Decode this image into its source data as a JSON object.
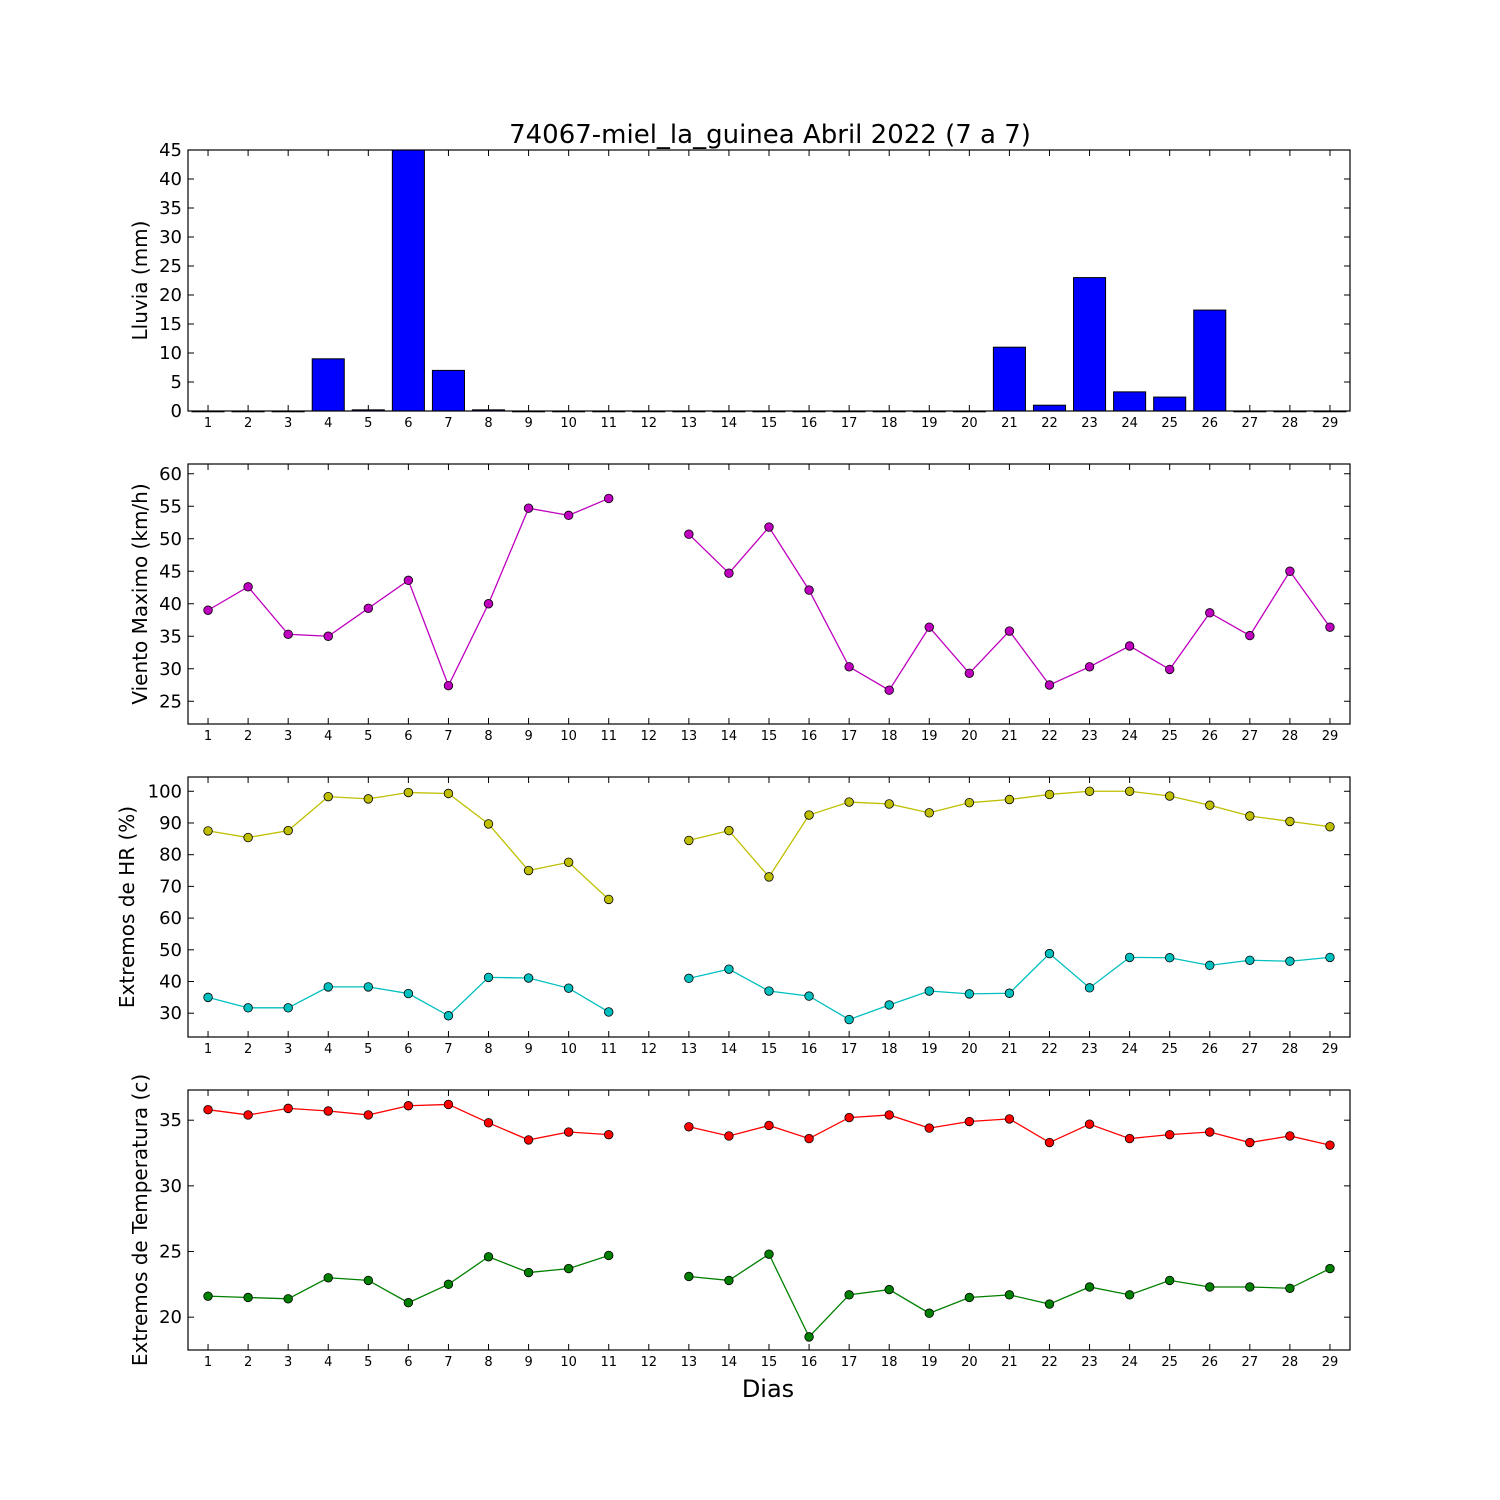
{
  "chart_data": [
    {
      "type": "bar",
      "title": "74067-miel_la_guinea Abril 2022  (7 a 7)",
      "ylabel": "Lluvia (mm)",
      "xlabel": "",
      "categories": [
        "1",
        "2",
        "3",
        "4",
        "5",
        "6",
        "7",
        "8",
        "9",
        "10",
        "11",
        "12",
        "13",
        "14",
        "15",
        "16",
        "17",
        "18",
        "19",
        "20",
        "21",
        "22",
        "23",
        "24",
        "25",
        "26",
        "27",
        "28",
        "29"
      ],
      "values": [
        0,
        0,
        0,
        9,
        0.2,
        45,
        7,
        0.2,
        0,
        0,
        0,
        0,
        0,
        0,
        0,
        0,
        0,
        0,
        0,
        0,
        11,
        1,
        23,
        3.3,
        2.4,
        17.4,
        0,
        0,
        0
      ],
      "ylim": [
        0,
        45
      ],
      "yticks": [
        0,
        5,
        10,
        15,
        20,
        25,
        30,
        35,
        40,
        45
      ],
      "color": "#0000ff"
    },
    {
      "type": "line",
      "ylabel": "Viento Maximo (km/h)",
      "x": [
        1,
        2,
        3,
        4,
        5,
        6,
        7,
        8,
        9,
        10,
        11,
        12,
        13,
        14,
        15,
        16,
        17,
        18,
        19,
        20,
        21,
        22,
        23,
        24,
        25,
        26,
        27,
        28,
        29
      ],
      "series": [
        {
          "values": [
            39,
            42.6,
            35.3,
            35,
            39.3,
            43.6,
            27.4,
            40,
            54.7,
            53.6,
            56.2,
            null,
            50.7,
            44.7,
            51.8,
            42.1,
            30.3,
            26.7,
            36.4,
            29.3,
            35.8,
            27.5,
            30.3,
            33.5,
            29.9,
            38.6,
            35.1,
            45,
            36.4
          ],
          "color": "#bf00bf"
        }
      ],
      "ylim": [
        21.5,
        61.5
      ],
      "yticks": [
        25,
        30,
        35,
        40,
        45,
        50,
        55,
        60
      ]
    },
    {
      "type": "line",
      "ylabel": "Extremos de HR (%)",
      "x": [
        1,
        2,
        3,
        4,
        5,
        6,
        7,
        8,
        9,
        10,
        11,
        12,
        13,
        14,
        15,
        16,
        17,
        18,
        19,
        20,
        21,
        22,
        23,
        24,
        25,
        26,
        27,
        28,
        29
      ],
      "series": [
        {
          "values": [
            87.5,
            85.4,
            87.6,
            98.3,
            97.6,
            99.6,
            99.3,
            89.7,
            75,
            77.6,
            65.9,
            null,
            84.5,
            87.6,
            73,
            92.5,
            96.6,
            96,
            93.2,
            96.4,
            97.4,
            99,
            100,
            100,
            98.5,
            95.6,
            92.2,
            90.5,
            88.8
          ],
          "color": "#bfbf00"
        },
        {
          "values": [
            35,
            31.7,
            31.7,
            38.3,
            38.3,
            36.2,
            29.2,
            41.3,
            41.1,
            37.9,
            30.4,
            null,
            41,
            43.9,
            37,
            35.4,
            28,
            32.6,
            37,
            36.1,
            36.3,
            48.8,
            38,
            47.6,
            47.5,
            45.1,
            46.7,
            46.4,
            47.6
          ],
          "color": "#00bfbf"
        }
      ],
      "ylim": [
        22.5,
        104.5
      ],
      "yticks": [
        30,
        40,
        50,
        60,
        70,
        80,
        90,
        100
      ]
    },
    {
      "type": "line",
      "ylabel": "Extremos de Temperatura (c)",
      "xlabel": "Dias",
      "x": [
        1,
        2,
        3,
        4,
        5,
        6,
        7,
        8,
        9,
        10,
        11,
        12,
        13,
        14,
        15,
        16,
        17,
        18,
        19,
        20,
        21,
        22,
        23,
        24,
        25,
        26,
        27,
        28,
        29
      ],
      "series": [
        {
          "values": [
            35.8,
            35.4,
            35.9,
            35.7,
            35.4,
            36.1,
            36.2,
            34.8,
            33.5,
            34.1,
            33.9,
            null,
            34.5,
            33.8,
            34.6,
            33.6,
            35.2,
            35.4,
            34.4,
            34.9,
            35.1,
            33.3,
            34.7,
            33.6,
            33.9,
            34.1,
            33.3,
            33.8,
            33.1
          ],
          "color": "#ff0000"
        },
        {
          "values": [
            21.6,
            21.5,
            21.4,
            23,
            22.8,
            21.1,
            22.5,
            24.6,
            23.4,
            23.7,
            24.7,
            null,
            23.1,
            22.8,
            24.8,
            18.5,
            21.7,
            22.1,
            20.3,
            21.5,
            21.7,
            21,
            22.3,
            21.7,
            22.8,
            22.3,
            22.3,
            22.2,
            23.7
          ],
          "color": "#008000"
        }
      ],
      "ylim": [
        17.5,
        37.3
      ],
      "yticks": [
        20,
        25,
        30,
        35
      ]
    }
  ]
}
